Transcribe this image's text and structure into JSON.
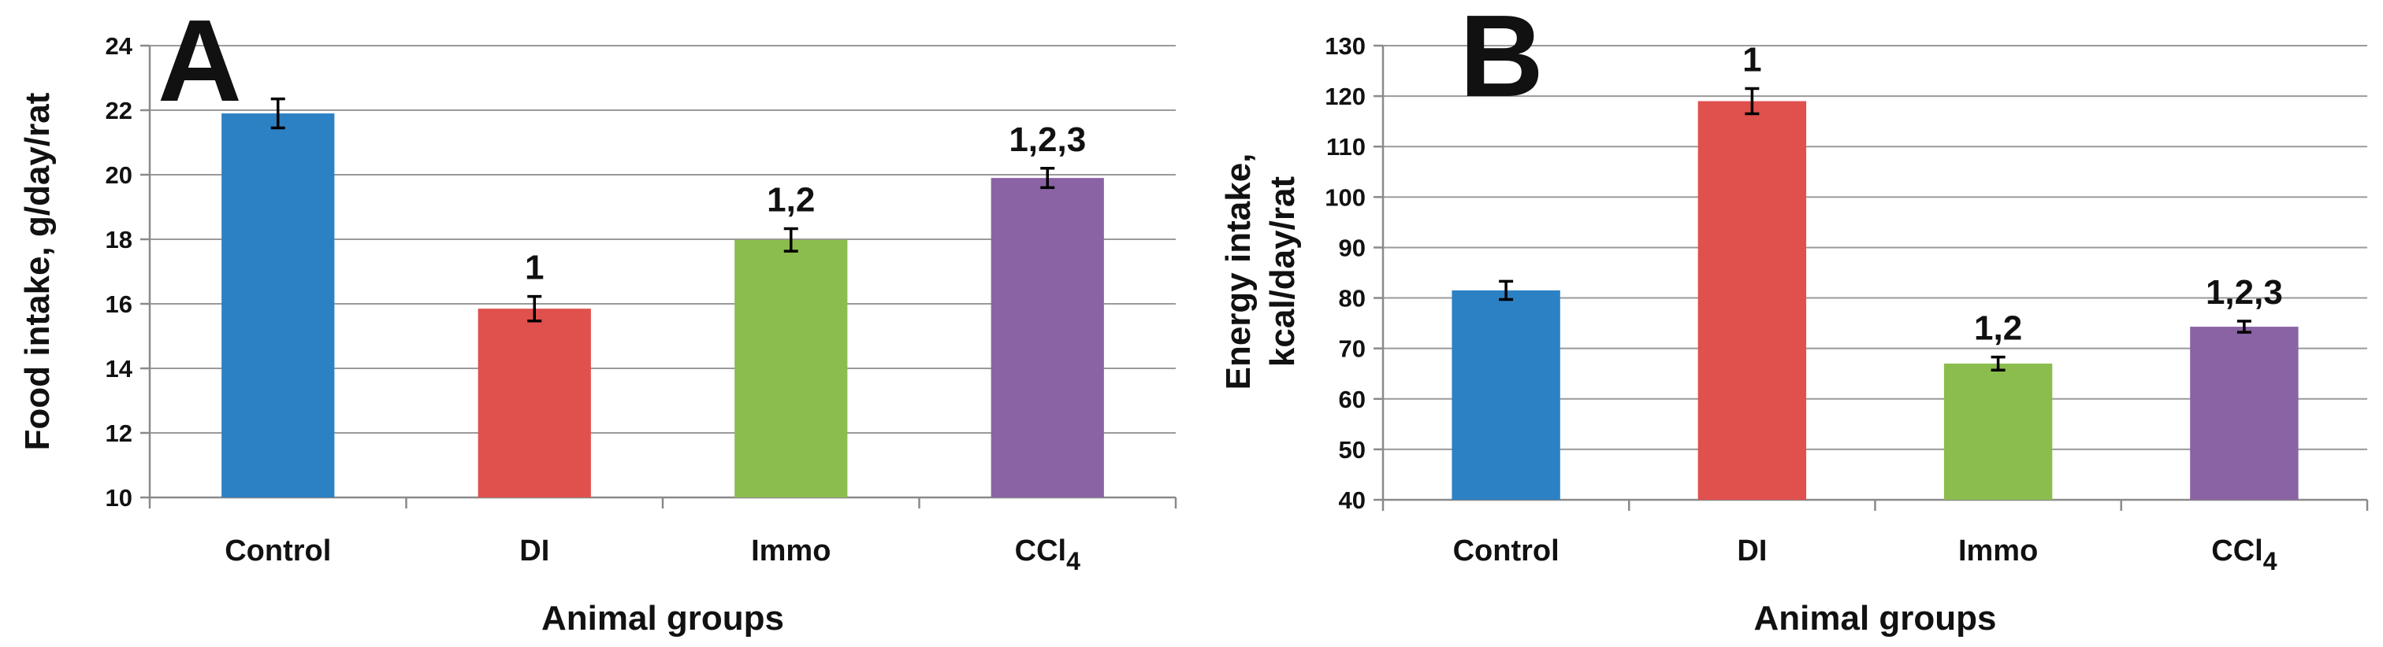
{
  "chart_data": [
    {
      "type": "bar",
      "panel_label": "A",
      "categories": [
        "Control",
        "DI",
        "Immo",
        "CCl4"
      ],
      "category_display": [
        {
          "main": "Control",
          "sub": ""
        },
        {
          "main": "DI",
          "sub": ""
        },
        {
          "main": "Immo",
          "sub": ""
        },
        {
          "main": "CCl",
          "sub": "4"
        }
      ],
      "values": [
        21.9,
        15.85,
        17.98,
        19.9
      ],
      "errors": [
        0.45,
        0.38,
        0.35,
        0.3
      ],
      "annotations": [
        "",
        "1",
        "1,2",
        "1,2,3"
      ],
      "colors": [
        "#2c81c4",
        "#e0504d",
        "#8bbd4e",
        "#8a63a5"
      ],
      "xlabel": "Animal groups",
      "ylabel_lines": [
        "Food intake, g/day/rat"
      ],
      "ylim": [
        10,
        24
      ],
      "yticks": [
        10,
        12,
        14,
        16,
        18,
        20,
        22,
        24
      ],
      "grid": true
    },
    {
      "type": "bar",
      "panel_label": "B",
      "categories": [
        "Control",
        "DI",
        "Immo",
        "CCl4"
      ],
      "category_display": [
        {
          "main": "Control",
          "sub": ""
        },
        {
          "main": "DI",
          "sub": ""
        },
        {
          "main": "Immo",
          "sub": ""
        },
        {
          "main": "CCl",
          "sub": "4"
        }
      ],
      "values": [
        81.5,
        119,
        67,
        74.3
      ],
      "errors": [
        1.8,
        2.5,
        1.3,
        1.1
      ],
      "annotations": [
        "",
        "1",
        "1,2",
        "1,2,3"
      ],
      "colors": [
        "#2c81c4",
        "#e0504d",
        "#8bbd4e",
        "#8a63a5"
      ],
      "xlabel": "Animal groups",
      "ylabel_lines": [
        "Energy intake,",
        "kcal/day/rat"
      ],
      "ylim": [
        40,
        130
      ],
      "yticks": [
        40,
        50,
        60,
        70,
        80,
        90,
        100,
        110,
        120,
        130
      ],
      "grid": true
    }
  ]
}
